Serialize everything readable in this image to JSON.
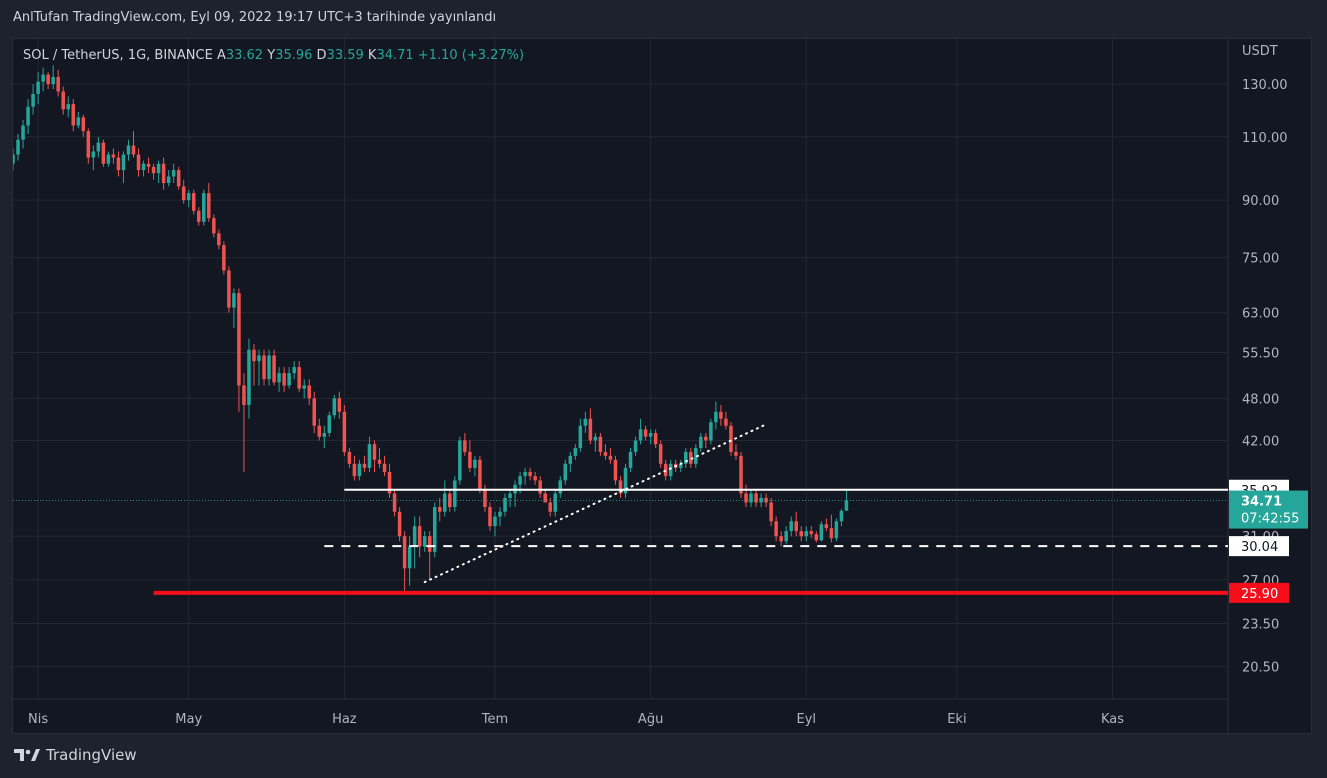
{
  "header": {
    "published": "AnlTufan TradingView.com, Eyl 09, 2022 19:17 UTC+3 tarihinde yayınlandı"
  },
  "footer": {
    "brand": "TradingView",
    "logo_icon": "tradingview-logo-icon"
  },
  "colors": {
    "up": "#26a69a",
    "down": "#ef5350",
    "support_red": "#f70d1a",
    "white": "#ffffff",
    "grid": "#242733",
    "axis_text": "#b2b5be",
    "price_tag_bg": "#26a69a"
  },
  "chart_data": {
    "type": "candlestick",
    "symbol": "SOL / TetherUS, 1G, BINANCE",
    "legend": {
      "open_label": "A",
      "open": "33.62",
      "high_label": "Y",
      "high": "35.96",
      "low_label": "D",
      "low": "33.59",
      "close_label": "K",
      "close": "34.71",
      "change": "+1.10 (+3.27%)"
    },
    "scale": "log",
    "currency_label": "USDT",
    "ylim": [
      18.5,
      150
    ],
    "y_ticks": [
      "130.00",
      "110.00",
      "90.00",
      "75.00",
      "63.00",
      "55.50",
      "48.00",
      "42.00",
      "31.00",
      "27.00",
      "23.50",
      "20.50"
    ],
    "x_ticks": [
      {
        "label": "Nis",
        "date": "2022-04-01"
      },
      {
        "label": "May",
        "date": "2022-05-01"
      },
      {
        "label": "Haz",
        "date": "2022-06-01"
      },
      {
        "label": "Tem",
        "date": "2022-07-01"
      },
      {
        "label": "Ağu",
        "date": "2022-08-01"
      },
      {
        "label": "Eyl",
        "date": "2022-09-01"
      },
      {
        "label": "Eki",
        "date": "2022-10-01"
      },
      {
        "label": "Kas",
        "date": "2022-11-01"
      }
    ],
    "xlim": [
      "2022-03-27",
      "2022-11-24"
    ],
    "last_price": {
      "value": 34.71,
      "label": "34.71",
      "countdown": "07:42:55"
    },
    "levels": [
      {
        "name": "resistance",
        "value": 35.92,
        "label": "35.92",
        "style": "solid",
        "color": "#ffffff",
        "from": "2022-06-01"
      },
      {
        "name": "support",
        "value": 30.04,
        "label": "30.04",
        "style": "dashed",
        "color": "#ffffff",
        "from": "2022-05-28"
      },
      {
        "name": "major-support",
        "value": 25.9,
        "label": "25.90",
        "style": "thick",
        "color": "#f70d1a",
        "from": "2022-04-24"
      }
    ],
    "trendline": {
      "from": {
        "date": "2022-06-17",
        "price": 26.8
      },
      "to": {
        "date": "2022-08-24",
        "price": 44.2
      },
      "style": "dotted"
    },
    "candles": [
      [
        "2022-03-27",
        101,
        106,
        99,
        104
      ],
      [
        "2022-03-28",
        104,
        111,
        102,
        109
      ],
      [
        "2022-03-29",
        109,
        116,
        106,
        114
      ],
      [
        "2022-03-30",
        114,
        124,
        111,
        121
      ],
      [
        "2022-03-31",
        121,
        130,
        118,
        126
      ],
      [
        "2022-04-01",
        126,
        135,
        122,
        131
      ],
      [
        "2022-04-02",
        131,
        137,
        127,
        134
      ],
      [
        "2022-04-03",
        134,
        135,
        128,
        130
      ],
      [
        "2022-04-04",
        130,
        138,
        128,
        133
      ],
      [
        "2022-04-05",
        133,
        136,
        125,
        127
      ],
      [
        "2022-04-06",
        127,
        129,
        118,
        120
      ],
      [
        "2022-04-07",
        120,
        125,
        117,
        122
      ],
      [
        "2022-04-08",
        122,
        124,
        112,
        114
      ],
      [
        "2022-04-09",
        114,
        119,
        113,
        117
      ],
      [
        "2022-04-10",
        117,
        118,
        110,
        112
      ],
      [
        "2022-04-11",
        112,
        113,
        101,
        103
      ],
      [
        "2022-04-12",
        103,
        107,
        99,
        105
      ],
      [
        "2022-04-13",
        105,
        110,
        103,
        108
      ],
      [
        "2022-04-14",
        108,
        109,
        100,
        101
      ],
      [
        "2022-04-15",
        101,
        105,
        100,
        104
      ],
      [
        "2022-04-16",
        104,
        106,
        101,
        103
      ],
      [
        "2022-04-17",
        103,
        105,
        97,
        99
      ],
      [
        "2022-04-18",
        99,
        105,
        95,
        104
      ],
      [
        "2022-04-19",
        104,
        109,
        102,
        107
      ],
      [
        "2022-04-20",
        107,
        112,
        103,
        104
      ],
      [
        "2022-04-21",
        104,
        106,
        97,
        99
      ],
      [
        "2022-04-22",
        99,
        102,
        97,
        101
      ],
      [
        "2022-04-23",
        101,
        103,
        98,
        100
      ],
      [
        "2022-04-24",
        100,
        101,
        96,
        98
      ],
      [
        "2022-04-25",
        98,
        102,
        95,
        101
      ],
      [
        "2022-04-26",
        101,
        103,
        93,
        95
      ],
      [
        "2022-04-27",
        95,
        99,
        94,
        97
      ],
      [
        "2022-04-28",
        97,
        101,
        95,
        99
      ],
      [
        "2022-04-29",
        99,
        100,
        93,
        94
      ],
      [
        "2022-04-30",
        94,
        96,
        89,
        90
      ],
      [
        "2022-05-01",
        90,
        93,
        88,
        92
      ],
      [
        "2022-05-02",
        92,
        93,
        86,
        87
      ],
      [
        "2022-05-03",
        87,
        88,
        83,
        84
      ],
      [
        "2022-05-04",
        84,
        93,
        83,
        92
      ],
      [
        "2022-05-05",
        92,
        95,
        84,
        85
      ],
      [
        "2022-05-06",
        85,
        86,
        80,
        81
      ],
      [
        "2022-05-07",
        81,
        82,
        77,
        78
      ],
      [
        "2022-05-08",
        78,
        79,
        71,
        72
      ],
      [
        "2022-05-09",
        72,
        73,
        63,
        64
      ],
      [
        "2022-05-10",
        64,
        68,
        60,
        67
      ],
      [
        "2022-05-11",
        67,
        68,
        46,
        50
      ],
      [
        "2022-05-12",
        50,
        52,
        38,
        47
      ],
      [
        "2022-05-13",
        47,
        58,
        45,
        56
      ],
      [
        "2022-05-14",
        56,
        57,
        50,
        54
      ],
      [
        "2022-05-15",
        54,
        56,
        50,
        55
      ],
      [
        "2022-05-16",
        55,
        56,
        50,
        51
      ],
      [
        "2022-05-17",
        51,
        56,
        50,
        55
      ],
      [
        "2022-05-18",
        55,
        56,
        50,
        50.5
      ],
      [
        "2022-05-19",
        50.5,
        53,
        49,
        52
      ],
      [
        "2022-05-20",
        52,
        53,
        49,
        50
      ],
      [
        "2022-05-21",
        50,
        53,
        49.5,
        52
      ],
      [
        "2022-05-22",
        52,
        54,
        51,
        53
      ],
      [
        "2022-05-23",
        53,
        54,
        49,
        49.5
      ],
      [
        "2022-05-24",
        49.5,
        51,
        48,
        50
      ],
      [
        "2022-05-25",
        50,
        51,
        47,
        48
      ],
      [
        "2022-05-26",
        48,
        49,
        43,
        44
      ],
      [
        "2022-05-27",
        44,
        45,
        42,
        42.5
      ],
      [
        "2022-05-28",
        42.5,
        44,
        41,
        43
      ],
      [
        "2022-05-29",
        43,
        46,
        42.5,
        45.5
      ],
      [
        "2022-05-30",
        45.5,
        48.5,
        45,
        48
      ],
      [
        "2022-05-31",
        48,
        49,
        45,
        46
      ],
      [
        "2022-06-01",
        46,
        47,
        40,
        40.5
      ],
      [
        "2022-06-02",
        40.5,
        41,
        38.5,
        39
      ],
      [
        "2022-06-03",
        39,
        40,
        37,
        37.5
      ],
      [
        "2022-06-04",
        37.5,
        39.5,
        37,
        39
      ],
      [
        "2022-06-05",
        39,
        40,
        38,
        38.5
      ],
      [
        "2022-06-06",
        38.5,
        42.5,
        38,
        41.5
      ],
      [
        "2022-06-07",
        41.5,
        42,
        38,
        39.5
      ],
      [
        "2022-06-08",
        39.5,
        41,
        38.5,
        39
      ],
      [
        "2022-06-09",
        39,
        40,
        37.5,
        38
      ],
      [
        "2022-06-10",
        38,
        39,
        35,
        35.5
      ],
      [
        "2022-06-11",
        35.5,
        36,
        33,
        33.5
      ],
      [
        "2022-06-12",
        33.5,
        34,
        30.5,
        31
      ],
      [
        "2022-06-13",
        31,
        31.5,
        26,
        28
      ],
      [
        "2022-06-14",
        28,
        31,
        26.5,
        30
      ],
      [
        "2022-06-15",
        30,
        33,
        28,
        32
      ],
      [
        "2022-06-16",
        32,
        33,
        29,
        30
      ],
      [
        "2022-06-17",
        30,
        31.5,
        29.5,
        31
      ],
      [
        "2022-06-18",
        31,
        31.5,
        27,
        29.5
      ],
      [
        "2022-06-19",
        29.5,
        34.5,
        29,
        34
      ],
      [
        "2022-06-20",
        34,
        35,
        32.5,
        33.5
      ],
      [
        "2022-06-21",
        33.5,
        37,
        33,
        35.5
      ],
      [
        "2022-06-22",
        35.5,
        36,
        33.5,
        34
      ],
      [
        "2022-06-23",
        34,
        37.5,
        33.5,
        37
      ],
      [
        "2022-06-24",
        37,
        42.5,
        36.5,
        42
      ],
      [
        "2022-06-25",
        42,
        43,
        40,
        40.5
      ],
      [
        "2022-06-26",
        40.5,
        42,
        38,
        38.5
      ],
      [
        "2022-06-27",
        38.5,
        40,
        37.5,
        39.5
      ],
      [
        "2022-06-28",
        39.5,
        40,
        35.5,
        36
      ],
      [
        "2022-06-29",
        36,
        36.5,
        33.5,
        34
      ],
      [
        "2022-06-30",
        34,
        34.5,
        31.5,
        32
      ],
      [
        "2022-07-01",
        32,
        33.5,
        31,
        33
      ],
      [
        "2022-07-02",
        33,
        34,
        32,
        33.5
      ],
      [
        "2022-07-03",
        33.5,
        35.5,
        33,
        35
      ],
      [
        "2022-07-04",
        35,
        36,
        34,
        35.5
      ],
      [
        "2022-07-05",
        35.5,
        37,
        34,
        36.5
      ],
      [
        "2022-07-06",
        36.5,
        38,
        35.5,
        37.5
      ],
      [
        "2022-07-07",
        37.5,
        38.5,
        36.5,
        38
      ],
      [
        "2022-07-08",
        38,
        38.5,
        37,
        37.5
      ],
      [
        "2022-07-09",
        37.5,
        38,
        36.5,
        37
      ],
      [
        "2022-07-10",
        37,
        37.5,
        35,
        35.5
      ],
      [
        "2022-07-11",
        35.5,
        36,
        34.5,
        34.5
      ],
      [
        "2022-07-12",
        34.5,
        35,
        33,
        33.5
      ],
      [
        "2022-07-13",
        33.5,
        36,
        33,
        35.5
      ],
      [
        "2022-07-14",
        35.5,
        37.5,
        35,
        37
      ],
      [
        "2022-07-15",
        37,
        39.5,
        36.5,
        39
      ],
      [
        "2022-07-16",
        39,
        40.5,
        38,
        40
      ],
      [
        "2022-07-17",
        40,
        41.5,
        39.5,
        41
      ],
      [
        "2022-07-18",
        41,
        45,
        40.5,
        44
      ],
      [
        "2022-07-19",
        44,
        46,
        43,
        45
      ],
      [
        "2022-07-20",
        45,
        46.5,
        41.5,
        42
      ],
      [
        "2022-07-21",
        42,
        43,
        40.5,
        42.5
      ],
      [
        "2022-07-22",
        42.5,
        43,
        40,
        40.5
      ],
      [
        "2022-07-23",
        40.5,
        41.5,
        39.5,
        40
      ],
      [
        "2022-07-24",
        40,
        41,
        39,
        39.5
      ],
      [
        "2022-07-25",
        39.5,
        40,
        36.5,
        37
      ],
      [
        "2022-07-26",
        37,
        37.5,
        35,
        35.5
      ],
      [
        "2022-07-27",
        35.5,
        39,
        35,
        38.5
      ],
      [
        "2022-07-28",
        38.5,
        41,
        38,
        40.5
      ],
      [
        "2022-07-29",
        40.5,
        42.5,
        40,
        42
      ],
      [
        "2022-07-30",
        42,
        45,
        41.5,
        43.5
      ],
      [
        "2022-07-31",
        43.5,
        44,
        42,
        42.5
      ],
      [
        "2022-08-01",
        42.5,
        43.5,
        41.5,
        43
      ],
      [
        "2022-08-02",
        43,
        43.5,
        41,
        41.5
      ],
      [
        "2022-08-03",
        41.5,
        42,
        38.5,
        39
      ],
      [
        "2022-08-04",
        39,
        39.5,
        37,
        37.5
      ],
      [
        "2022-08-05",
        37.5,
        39.5,
        37,
        39
      ],
      [
        "2022-08-06",
        39,
        39.5,
        38,
        38.5
      ],
      [
        "2022-08-07",
        38.5,
        39.5,
        38,
        39
      ],
      [
        "2022-08-08",
        39,
        41,
        38.5,
        40.5
      ],
      [
        "2022-08-09",
        40.5,
        41,
        38.5,
        39
      ],
      [
        "2022-08-10",
        39,
        41.5,
        38.5,
        41
      ],
      [
        "2022-08-11",
        41,
        43,
        40.5,
        42.5
      ],
      [
        "2022-08-12",
        42.5,
        43,
        41,
        42
      ],
      [
        "2022-08-13",
        42,
        45,
        41.5,
        44.5
      ],
      [
        "2022-08-14",
        44.5,
        47.5,
        43.5,
        46
      ],
      [
        "2022-08-15",
        46,
        47,
        44,
        45
      ],
      [
        "2022-08-16",
        45,
        46,
        43.5,
        44
      ],
      [
        "2022-08-17",
        44,
        44.5,
        40,
        40.5
      ],
      [
        "2022-08-18",
        40.5,
        41.5,
        39.5,
        40
      ],
      [
        "2022-08-19",
        40,
        40.5,
        35,
        35.5
      ],
      [
        "2022-08-20",
        35.5,
        36.5,
        34,
        34.5
      ],
      [
        "2022-08-21",
        34.5,
        36,
        34,
        35.5
      ],
      [
        "2022-08-22",
        35.5,
        36,
        34,
        34.5
      ],
      [
        "2022-08-23",
        34.5,
        35.5,
        34,
        35
      ],
      [
        "2022-08-24",
        35,
        35.5,
        34,
        34.5
      ],
      [
        "2022-08-25",
        34.5,
        35,
        32,
        32.5
      ],
      [
        "2022-08-26",
        32.5,
        33,
        30.5,
        31
      ],
      [
        "2022-08-27",
        31,
        31.5,
        30,
        30.5
      ],
      [
        "2022-08-28",
        30.5,
        32,
        30.2,
        31.5
      ],
      [
        "2022-08-29",
        31.5,
        33,
        31,
        32.5
      ],
      [
        "2022-08-30",
        32.5,
        33.5,
        31,
        31.5
      ],
      [
        "2022-08-31",
        31.5,
        32,
        30.5,
        31
      ],
      [
        "2022-09-01",
        31,
        32,
        30.5,
        31.5
      ],
      [
        "2022-09-02",
        31.5,
        32,
        30.8,
        31.2
      ],
      [
        "2022-09-03",
        31.2,
        31.5,
        30.4,
        30.6
      ],
      [
        "2022-09-04",
        30.6,
        32.5,
        30.5,
        32.2
      ],
      [
        "2022-09-05",
        32.2,
        32.8,
        31.5,
        31.8
      ],
      [
        "2022-09-06",
        31.8,
        33.2,
        30.4,
        30.8
      ],
      [
        "2022-09-07",
        30.8,
        32.8,
        30.5,
        32.5
      ],
      [
        "2022-09-08",
        32.5,
        33.8,
        32,
        33.6
      ],
      [
        "2022-09-09",
        33.62,
        35.96,
        33.59,
        34.71
      ]
    ]
  }
}
